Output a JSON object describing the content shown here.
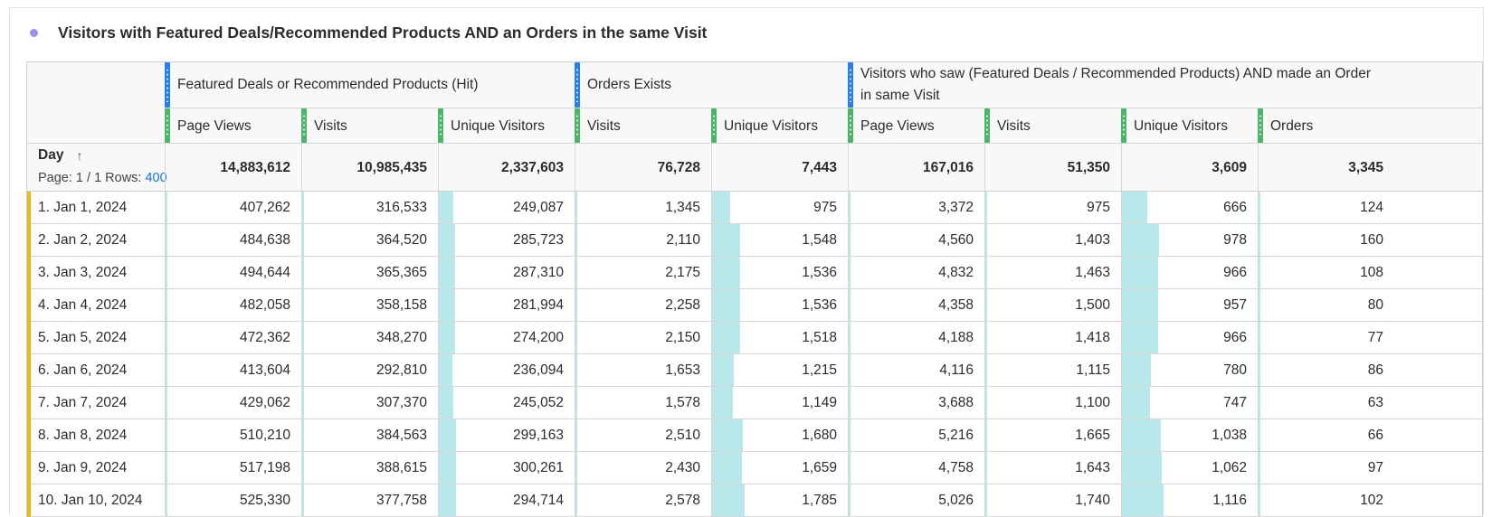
{
  "panel": {
    "title": "Visitors with Featured Deals/Recommended Products AND an Orders in the same Visit"
  },
  "table": {
    "dimension": {
      "label": "Day",
      "sort_icon": "arrow-up-icon",
      "pagination_prefix": "Page: 1 / 1 Rows:",
      "rows_value": "400"
    },
    "groups": [
      {
        "label": "Featured Deals or Recommended Products (Hit)",
        "handle_color": "#2680eb"
      },
      {
        "label": "Orders Exists",
        "handle_color": "#2680eb"
      },
      {
        "label": "Visitors who saw (Featured Deals / Recommended Products) AND made an Order in same Visit",
        "handle_color": "#2680eb"
      }
    ],
    "columns": [
      {
        "label": "Page Views",
        "total": "14,883,612"
      },
      {
        "label": "Visits",
        "total": "10,985,435"
      },
      {
        "label": "Unique Visitors",
        "total": "2,337,603"
      },
      {
        "label": "Visits",
        "total": "76,728"
      },
      {
        "label": "Unique Visitors",
        "total": "7,443"
      },
      {
        "label": "Page Views",
        "total": "167,016"
      },
      {
        "label": "Visits",
        "total": "51,350"
      },
      {
        "label": "Unique Visitors",
        "total": "3,609"
      },
      {
        "label": "Orders",
        "total": "3,345"
      }
    ],
    "rows": [
      {
        "label": "1.  Jan 1, 2024",
        "values": [
          "407,262",
          "316,533",
          "249,087",
          "1,345",
          "975",
          "3,372",
          "975",
          "666",
          "124"
        ],
        "bar_pcts": [
          0.6,
          0.7,
          10.7,
          0.3,
          13.1,
          0.3,
          0.4,
          18.5,
          0.5
        ]
      },
      {
        "label": "2.  Jan 2, 2024",
        "values": [
          "484,638",
          "364,520",
          "285,723",
          "2,110",
          "1,548",
          "4,560",
          "1,403",
          "978",
          "160"
        ],
        "bar_pcts": [
          0.7,
          0.8,
          12.2,
          0.4,
          20.8,
          0.4,
          0.4,
          27.1,
          0.6
        ]
      },
      {
        "label": "3.  Jan 3, 2024",
        "values": [
          "494,644",
          "365,365",
          "287,310",
          "2,175",
          "1,536",
          "4,832",
          "1,463",
          "966",
          "108"
        ],
        "bar_pcts": [
          0.7,
          0.8,
          12.3,
          0.4,
          20.6,
          0.4,
          0.4,
          26.8,
          0.4
        ]
      },
      {
        "label": "4.  Jan 4, 2024",
        "values": [
          "482,058",
          "358,158",
          "281,994",
          "2,258",
          "1,536",
          "4,358",
          "1,500",
          "957",
          "80"
        ],
        "bar_pcts": [
          0.7,
          0.8,
          12.1,
          0.4,
          20.6,
          0.4,
          0.4,
          26.5,
          0.3
        ]
      },
      {
        "label": "5.  Jan 5, 2024",
        "values": [
          "472,362",
          "348,270",
          "274,200",
          "2,150",
          "1,518",
          "4,188",
          "1,418",
          "966",
          "77"
        ],
        "bar_pcts": [
          0.7,
          0.8,
          11.7,
          0.4,
          20.4,
          0.4,
          0.4,
          26.8,
          0.3
        ]
      },
      {
        "label": "6.  Jan 6, 2024",
        "values": [
          "413,604",
          "292,810",
          "236,094",
          "1,653",
          "1,215",
          "4,116",
          "1,115",
          "780",
          "86"
        ],
        "bar_pcts": [
          0.6,
          0.6,
          10.1,
          0.3,
          16.3,
          0.4,
          0.3,
          21.6,
          0.3
        ]
      },
      {
        "label": "7.  Jan 7, 2024",
        "values": [
          "429,062",
          "307,370",
          "245,052",
          "1,578",
          "1,149",
          "3,688",
          "1,100",
          "747",
          "63"
        ],
        "bar_pcts": [
          0.6,
          0.7,
          10.5,
          0.3,
          15.4,
          0.3,
          0.3,
          20.7,
          0.2
        ]
      },
      {
        "label": "8.  Jan 8, 2024",
        "values": [
          "510,210",
          "384,563",
          "299,163",
          "2,510",
          "1,680",
          "5,216",
          "1,665",
          "1,038",
          "66"
        ],
        "bar_pcts": [
          0.8,
          0.8,
          12.8,
          0.5,
          22.6,
          0.5,
          0.5,
          28.8,
          0.2
        ]
      },
      {
        "label": "9.  Jan 9, 2024",
        "values": [
          "517,198",
          "388,615",
          "300,261",
          "2,430",
          "1,659",
          "4,758",
          "1,643",
          "1,062",
          "97"
        ],
        "bar_pcts": [
          0.8,
          0.8,
          12.8,
          0.5,
          22.3,
          0.4,
          0.5,
          29.4,
          0.4
        ]
      },
      {
        "label": "10.  Jan 10, 2024",
        "values": [
          "525,330",
          "377,758",
          "294,714",
          "2,578",
          "1,785",
          "5,026",
          "1,740",
          "1,116",
          "102"
        ],
        "bar_pcts": [
          0.8,
          0.8,
          12.6,
          0.5,
          24.0,
          0.5,
          0.5,
          30.9,
          0.4
        ]
      }
    ]
  }
}
